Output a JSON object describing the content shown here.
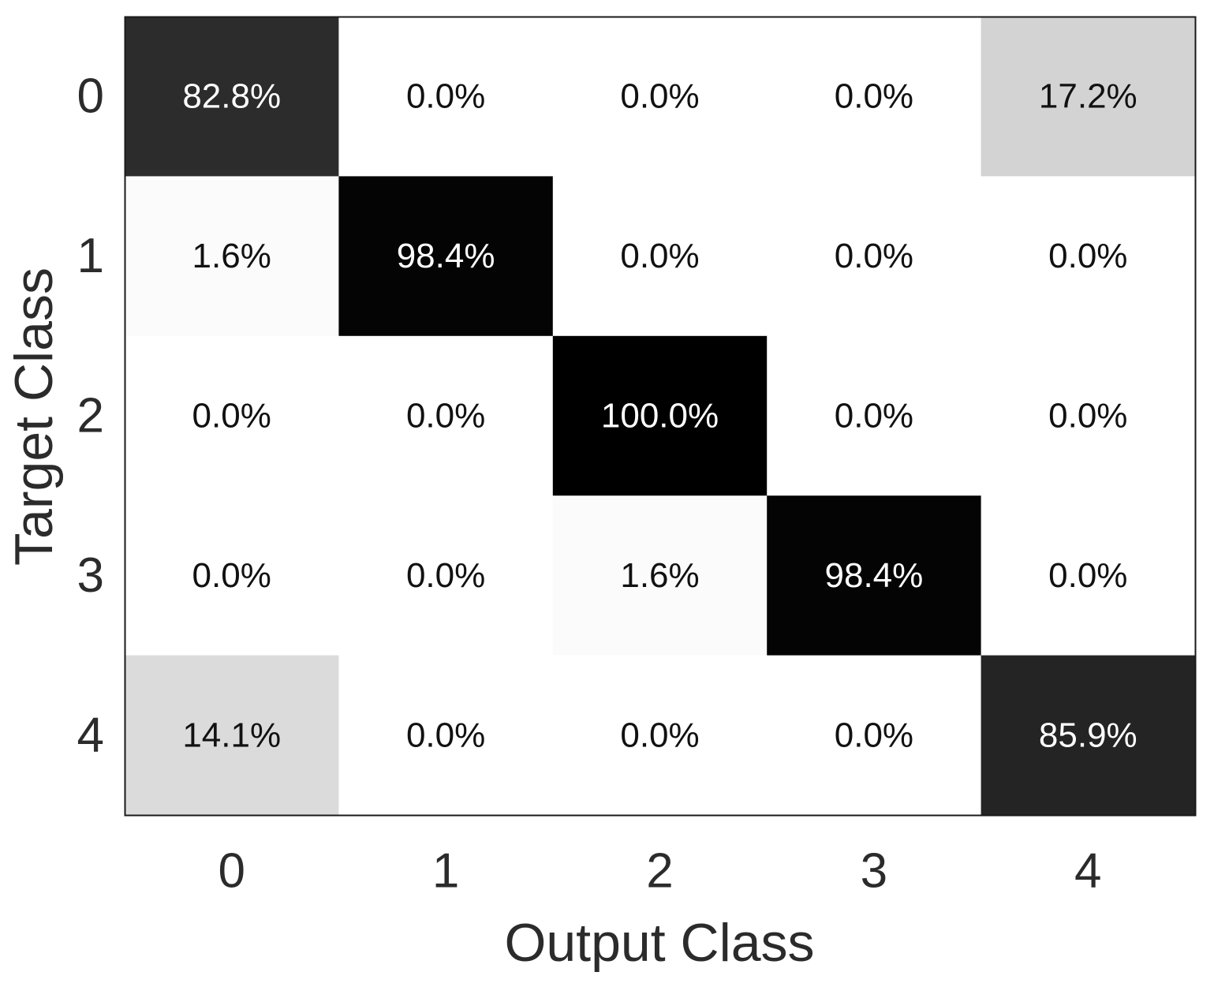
{
  "chart_data": {
    "type": "heatmap",
    "xlabel": "Output Class",
    "ylabel": "Target Class",
    "x_categories": [
      "0",
      "1",
      "2",
      "3",
      "4"
    ],
    "y_categories": [
      "0",
      "1",
      "2",
      "3",
      "4"
    ],
    "values": [
      [
        82.8,
        0.0,
        0.0,
        0.0,
        17.2
      ],
      [
        1.6,
        98.4,
        0.0,
        0.0,
        0.0
      ],
      [
        0.0,
        0.0,
        100.0,
        0.0,
        0.0
      ],
      [
        0.0,
        0.0,
        1.6,
        98.4,
        0.0
      ],
      [
        14.1,
        0.0,
        0.0,
        0.0,
        85.9
      ]
    ],
    "cell_labels": [
      [
        "82.8%",
        "0.0%",
        "0.0%",
        "0.0%",
        "17.2%"
      ],
      [
        "1.6%",
        "98.4%",
        "0.0%",
        "0.0%",
        "0.0%"
      ],
      [
        "0.0%",
        "0.0%",
        "100.0%",
        "0.0%",
        "0.0%"
      ],
      [
        "0.0%",
        "0.0%",
        "1.6%",
        "98.4%",
        "0.0%"
      ],
      [
        "14.1%",
        "0.0%",
        "0.0%",
        "0.0%",
        "85.9%"
      ]
    ],
    "value_range": [
      0,
      100
    ],
    "colormap": "grayscale-reversed",
    "colors": {
      "low": "#ffffff",
      "high": "#000000",
      "text_dark": "#111111",
      "text_light": "#ffffff",
      "axis_text": "#2b2b2b"
    },
    "grid": false,
    "legend": "none"
  }
}
